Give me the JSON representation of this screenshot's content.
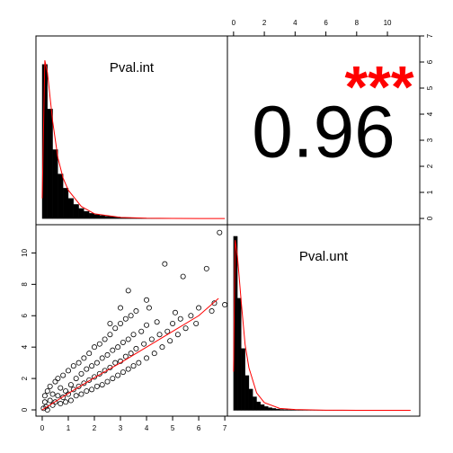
{
  "chart_data": [
    {
      "type": "histogram",
      "title": "Pval.int",
      "bins": [
        0,
        0.2,
        0.4,
        0.6,
        0.8,
        1,
        1.2,
        1.4,
        1.6,
        1.8,
        2,
        2.2,
        2.4,
        2.6,
        2.8,
        3,
        3.2,
        3.4,
        3.6,
        3.8,
        4,
        4.2,
        4.4,
        4.6,
        4.8,
        5,
        5.2,
        5.4,
        5.6,
        5.8,
        6,
        6.2,
        6.4,
        6.6,
        6.8,
        7
      ],
      "counts": [
        3.8,
        2.7,
        1.7,
        1.1,
        0.75,
        0.5,
        0.35,
        0.25,
        0.18,
        0.13,
        0.1,
        0.08,
        0.06,
        0.05,
        0.04,
        0.03,
        0.025,
        0.02,
        0.015,
        0.012,
        0.01,
        0.008,
        0.006,
        0.005,
        0.004,
        0.003,
        0.003,
        0.002,
        0.002,
        0.002,
        0.001,
        0.001,
        0.001,
        0.001,
        0.001
      ],
      "density": {
        "x": [
          0,
          0.1,
          0.2,
          0.4,
          0.6,
          0.8,
          1,
          1.5,
          2,
          3,
          4,
          5,
          6,
          7
        ],
        "y": [
          0.5,
          3.9,
          3.6,
          2.4,
          1.5,
          1,
          0.7,
          0.3,
          0.12,
          0.03,
          0.01,
          0.005,
          0.002,
          0.001
        ]
      },
      "color": "#000000",
      "line_color": "#ff0000",
      "xlim": [
        -0.24,
        7.1
      ],
      "ylim": [
        -0.15,
        4.5
      ]
    },
    {
      "type": "text",
      "value": 0.96,
      "stars": "***",
      "stars_color": "#ff0000",
      "xlim": [
        -0.4,
        12.1
      ],
      "xticks": [
        0,
        2,
        4,
        6,
        8,
        10
      ],
      "ylim": [
        -0.24,
        7.0
      ],
      "yticks": [
        0,
        1,
        2,
        3,
        4,
        5,
        6,
        7
      ]
    },
    {
      "type": "scatter",
      "x": [
        0.05,
        0.1,
        0.1,
        0.15,
        0.2,
        0.2,
        0.3,
        0.3,
        0.4,
        0.4,
        0.5,
        0.5,
        0.6,
        0.6,
        0.7,
        0.7,
        0.8,
        0.8,
        0.9,
        0.9,
        1.0,
        1.0,
        1.1,
        1.1,
        1.2,
        1.2,
        1.3,
        1.3,
        1.4,
        1.4,
        1.5,
        1.5,
        1.6,
        1.6,
        1.7,
        1.7,
        1.8,
        1.8,
        1.9,
        1.9,
        2.0,
        2.0,
        2.1,
        2.1,
        2.2,
        2.2,
        2.3,
        2.3,
        2.4,
        2.4,
        2.5,
        2.5,
        2.6,
        2.6,
        2.7,
        2.7,
        2.8,
        2.8,
        2.9,
        2.9,
        3.0,
        3.0,
        3.1,
        3.1,
        3.2,
        3.2,
        3.3,
        3.3,
        3.4,
        3.4,
        3.5,
        3.5,
        3.6,
        3.6,
        3.7,
        3.8,
        3.9,
        4.0,
        4.0,
        4.1,
        4.2,
        4.3,
        4.4,
        4.5,
        4.6,
        4.7,
        4.8,
        4.9,
        5.0,
        5.1,
        5.2,
        5.3,
        5.4,
        5.5,
        5.7,
        5.9,
        6.0,
        6.3,
        6.5,
        6.6,
        6.8,
        7.0,
        3.3,
        4.0,
        3.0,
        2.6
      ],
      "y": [
        0.1,
        0.5,
        0.9,
        0.2,
        1.2,
        0.0,
        0.6,
        1.5,
        0.3,
        1.0,
        1.8,
        0.5,
        0.9,
        2.0,
        0.4,
        1.4,
        2.2,
        0.8,
        1.2,
        0.5,
        2.5,
        1.0,
        1.6,
        0.6,
        2.8,
        1.3,
        0.9,
        2.0,
        3.0,
        1.5,
        1.0,
        2.3,
        3.3,
        1.7,
        1.2,
        2.6,
        3.6,
        1.9,
        1.3,
        2.8,
        4.0,
        2.1,
        1.5,
        3.0,
        4.2,
        2.3,
        1.6,
        3.3,
        4.5,
        2.5,
        1.8,
        3.5,
        4.8,
        2.7,
        2.0,
        3.8,
        5.2,
        3.0,
        2.2,
        4.0,
        5.5,
        3.1,
        2.4,
        4.3,
        5.8,
        3.4,
        2.6,
        4.5,
        6.0,
        3.6,
        2.8,
        4.8,
        6.3,
        3.9,
        3.0,
        5.0,
        4.2,
        3.3,
        5.4,
        6.5,
        4.5,
        3.6,
        5.6,
        4.8,
        4.0,
        9.3,
        5.0,
        4.4,
        5.5,
        6.2,
        4.8,
        5.8,
        8.5,
        5.2,
        6.0,
        5.5,
        6.5,
        9.0,
        6.3,
        6.8,
        11.3,
        6.7,
        7.6,
        7.0,
        6.5,
        5.5
      ],
      "fit": {
        "x": [
          0,
          1,
          2,
          3,
          4,
          5,
          6,
          6.76
        ],
        "y": [
          0,
          1.05,
          2.05,
          3.0,
          4.0,
          5.0,
          6.0,
          7.1
        ]
      },
      "color": "#000000",
      "line_color": "#ff0000",
      "xlim": [
        -0.24,
        7.1
      ],
      "xticks": [
        0,
        1,
        2,
        3,
        4,
        5,
        6,
        7
      ],
      "ylim": [
        -0.4,
        11.8
      ],
      "yticks": [
        0,
        2,
        4,
        6,
        8,
        10
      ]
    },
    {
      "type": "histogram",
      "title": "Pval.unt",
      "bins": [
        0,
        0.25,
        0.5,
        0.75,
        1,
        1.25,
        1.5,
        1.75,
        2,
        2.25,
        2.5,
        2.75,
        3,
        3.25,
        3.5,
        3.75,
        4,
        4.25,
        4.5,
        4.75,
        5,
        5.25,
        5.5,
        5.75,
        6,
        6.25,
        6.5,
        6.75,
        7,
        7.25,
        7.5,
        7.75,
        8,
        8.25,
        8.5,
        8.75,
        9,
        9.25,
        9.5,
        9.75,
        10,
        10.25,
        10.5,
        10.75,
        11,
        11.25,
        11.5
      ],
      "counts": [
        4.5,
        2.9,
        1.6,
        0.9,
        0.55,
        0.35,
        0.22,
        0.15,
        0.1,
        0.07,
        0.05,
        0.035,
        0.025,
        0.02,
        0.015,
        0.012,
        0.01,
        0.008,
        0.007,
        0.006,
        0.005,
        0.004,
        0.004,
        0.003,
        0.003,
        0.002,
        0.002,
        0.002,
        0.002,
        0.001,
        0.001,
        0.001,
        0.001,
        0.001,
        0.001,
        0.001,
        0.001,
        0.001,
        0.001,
        0.001,
        0.001,
        0.001,
        0.001,
        0.001,
        0.001,
        0.001
      ],
      "density": {
        "x": [
          0,
          0.1,
          0.25,
          0.5,
          0.75,
          1,
          1.5,
          2,
          3,
          4,
          6,
          8,
          10,
          11.5
        ],
        "y": [
          1.0,
          4.4,
          4.0,
          2.8,
          1.7,
          1.1,
          0.45,
          0.2,
          0.05,
          0.02,
          0.005,
          0.002,
          0.001,
          0.001
        ]
      },
      "color": "#000000",
      "line_color": "#ff0000",
      "xlim": [
        -0.4,
        12.1
      ],
      "ylim": [
        -0.15,
        4.8
      ]
    }
  ]
}
